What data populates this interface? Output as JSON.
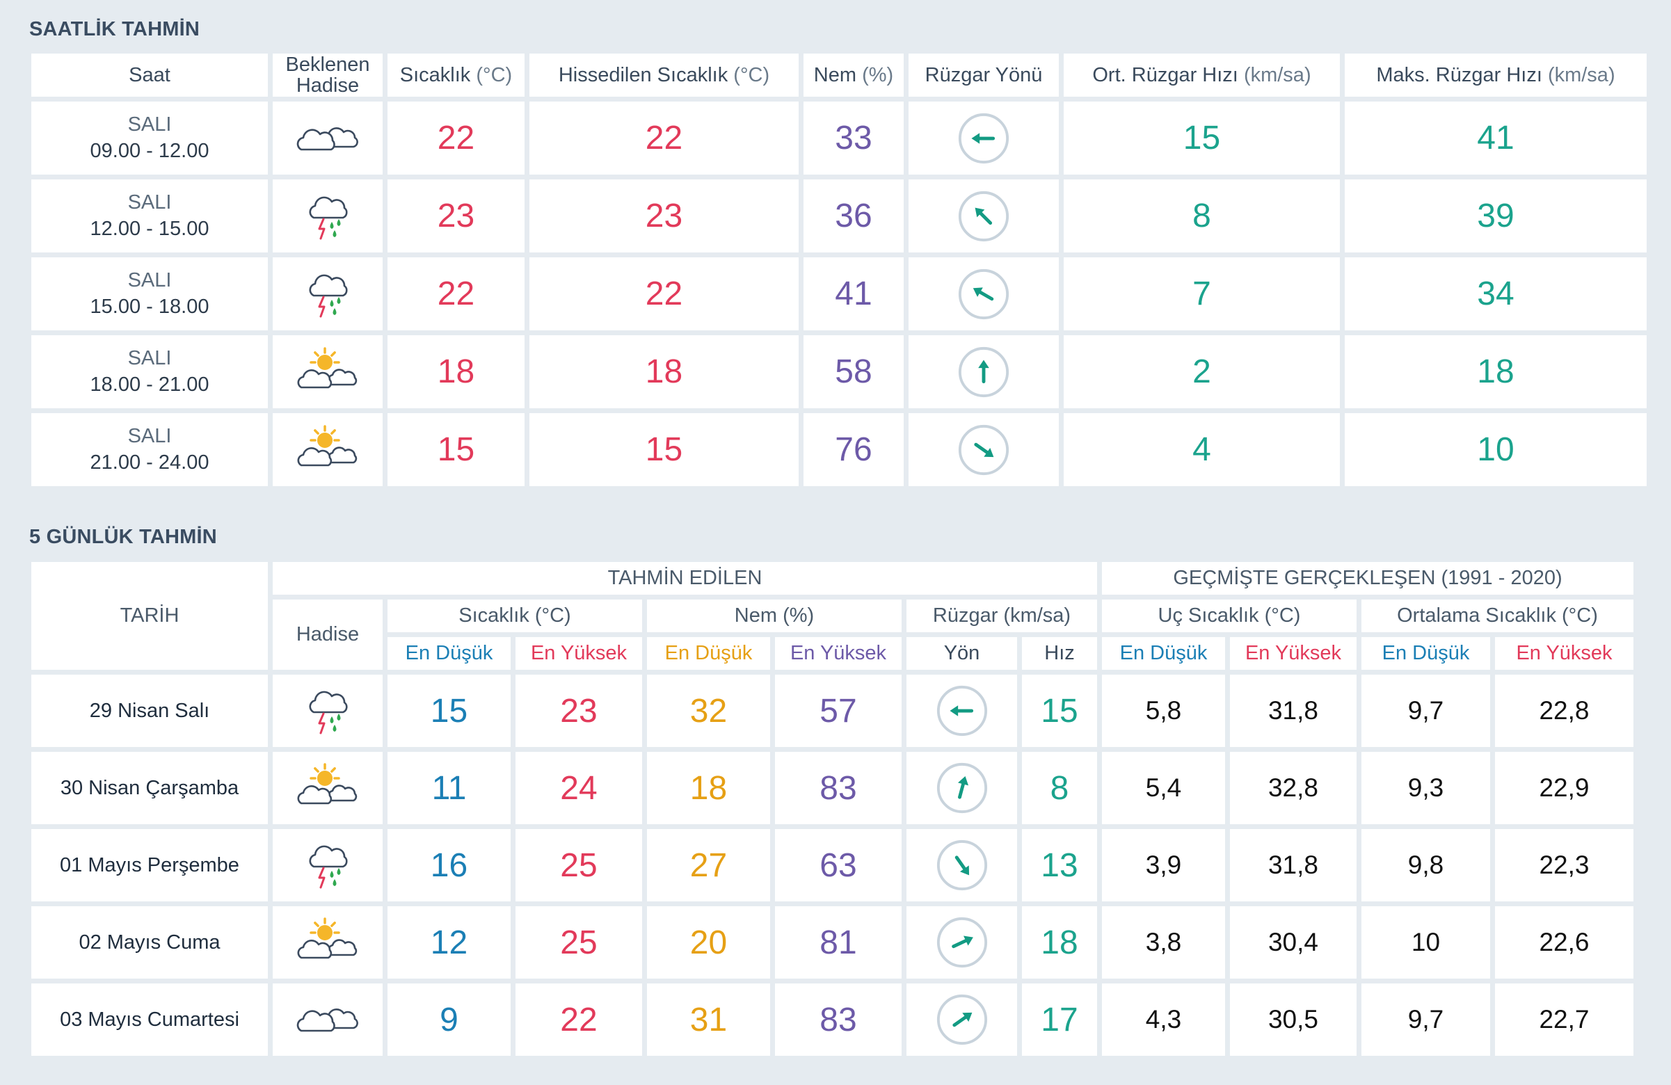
{
  "hourly": {
    "title": "SAATLİK TAHMİN",
    "headers": {
      "saat": "Saat",
      "hadise": "Beklenen Hadise",
      "sicaklik": "Sıcaklık",
      "sicaklik_unit": "(°C)",
      "hissedilen": "Hissedilen Sıcaklık",
      "hissedilen_unit": "(°C)",
      "nem": "Nem",
      "nem_unit": "(%)",
      "ruzgar_yonu": "Rüzgar Yönü",
      "ort_ruzgar": "Ort. Rüzgar Hızı",
      "ort_ruzgar_unit": "(km/sa)",
      "maks_ruzgar": "Maks. Rüzgar Hızı",
      "maks_ruzgar_unit": "(km/sa)"
    },
    "rows": [
      {
        "day": "SALI",
        "time": "09.00 - 12.00",
        "icon": "cloudy-icon",
        "temp": "22",
        "feels": "22",
        "humidity": "33",
        "wind_deg": 270,
        "avg_wind": "15",
        "max_wind": "41"
      },
      {
        "day": "SALI",
        "time": "12.00 - 15.00",
        "icon": "thunderstorm-rain-icon",
        "temp": "23",
        "feels": "23",
        "humidity": "36",
        "wind_deg": 315,
        "avg_wind": "8",
        "max_wind": "39"
      },
      {
        "day": "SALI",
        "time": "15.00 - 18.00",
        "icon": "thunderstorm-rain-icon",
        "temp": "22",
        "feels": "22",
        "humidity": "41",
        "wind_deg": 300,
        "avg_wind": "7",
        "max_wind": "34"
      },
      {
        "day": "SALI",
        "time": "18.00 - 21.00",
        "icon": "partly-cloudy-icon",
        "temp": "18",
        "feels": "18",
        "humidity": "58",
        "wind_deg": 0,
        "avg_wind": "2",
        "max_wind": "18"
      },
      {
        "day": "SALI",
        "time": "21.00 - 24.00",
        "icon": "partly-cloudy-icon",
        "temp": "15",
        "feels": "15",
        "humidity": "76",
        "wind_deg": 125,
        "avg_wind": "4",
        "max_wind": "10"
      }
    ]
  },
  "daily": {
    "title": "5 GÜNLÜK TAHMİN",
    "headers": {
      "tarih": "TARİH",
      "tahmin_edilen": "TAHMİN EDİLEN",
      "gecmiste": "GEÇMİŞTE GERÇEKLEŞEN (1991 - 2020)",
      "hadise": "Hadise",
      "sicaklik": "Sıcaklık (°C)",
      "nem": "Nem (%)",
      "ruzgar": "Rüzgar (km/sa)",
      "uc_sicaklik": "Uç Sıcaklık (°C)",
      "ortalama_sicaklik": "Ortalama Sıcaklık (°C)",
      "en_dusuk": "En Düşük",
      "en_yuksek": "En Yüksek",
      "yon": "Yön",
      "hiz": "Hız"
    },
    "rows": [
      {
        "date": "29 Nisan Salı",
        "icon": "thunderstorm-rain-icon",
        "temp_min": "15",
        "temp_max": "23",
        "hum_min": "32",
        "hum_max": "57",
        "wind_deg": 270,
        "wind_speed": "15",
        "ext_min": "5,8",
        "ext_max": "31,8",
        "avg_min": "9,7",
        "avg_max": "22,8"
      },
      {
        "date": "30 Nisan Çarşamba",
        "icon": "partly-cloudy-icon",
        "temp_min": "11",
        "temp_max": "24",
        "hum_min": "18",
        "hum_max": "83",
        "wind_deg": 15,
        "wind_speed": "8",
        "ext_min": "5,4",
        "ext_max": "32,8",
        "avg_min": "9,3",
        "avg_max": "22,9"
      },
      {
        "date": "01 Mayıs Perşembe",
        "icon": "thunderstorm-rain-icon",
        "temp_min": "16",
        "temp_max": "25",
        "hum_min": "27",
        "hum_max": "63",
        "wind_deg": 145,
        "wind_speed": "13",
        "ext_min": "3,9",
        "ext_max": "31,8",
        "avg_min": "9,8",
        "avg_max": "22,3"
      },
      {
        "date": "02 Mayıs Cuma",
        "icon": "partly-cloudy-icon",
        "temp_min": "12",
        "temp_max": "25",
        "hum_min": "20",
        "hum_max": "81",
        "wind_deg": 65,
        "wind_speed": "18",
        "ext_min": "3,8",
        "ext_max": "30,4",
        "avg_min": "10",
        "avg_max": "22,6"
      },
      {
        "date": "03 Mayıs Cumartesi",
        "icon": "cloudy-icon",
        "temp_min": "9",
        "temp_max": "22",
        "hum_min": "31",
        "hum_max": "83",
        "wind_deg": 55,
        "wind_speed": "17",
        "ext_min": "4,3",
        "ext_max": "30,5",
        "avg_min": "9,7",
        "avg_max": "22,7"
      }
    ]
  }
}
